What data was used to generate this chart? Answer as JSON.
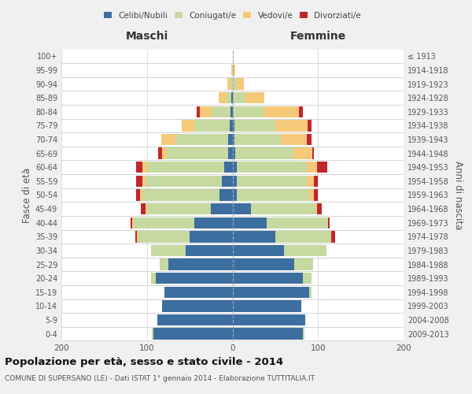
{
  "age_groups": [
    "100+",
    "95-99",
    "90-94",
    "85-89",
    "80-84",
    "75-79",
    "70-74",
    "65-69",
    "60-64",
    "55-59",
    "50-54",
    "45-49",
    "40-44",
    "35-39",
    "30-34",
    "25-29",
    "20-24",
    "15-19",
    "10-14",
    "5-9",
    "0-4"
  ],
  "birth_years": [
    "≤ 1913",
    "1914-1918",
    "1919-1923",
    "1924-1928",
    "1929-1933",
    "1934-1938",
    "1939-1943",
    "1944-1948",
    "1949-1953",
    "1954-1958",
    "1959-1963",
    "1964-1968",
    "1969-1973",
    "1974-1978",
    "1979-1983",
    "1984-1988",
    "1989-1993",
    "1994-1998",
    "1999-2003",
    "2004-2008",
    "2009-2013"
  ],
  "colors": {
    "celibi": "#3d6ea0",
    "coniugati": "#c5d9a0",
    "vedovi": "#f5c97a",
    "divorziati": "#c0272d"
  },
  "males": {
    "celibi": [
      0,
      0,
      0,
      1,
      2,
      3,
      5,
      5,
      10,
      12,
      15,
      25,
      45,
      50,
      55,
      75,
      90,
      80,
      82,
      88,
      92
    ],
    "coniugati": [
      0,
      0,
      2,
      6,
      22,
      42,
      62,
      72,
      90,
      90,
      90,
      75,
      70,
      60,
      40,
      10,
      5,
      0,
      0,
      0,
      2
    ],
    "vedovi": [
      0,
      1,
      4,
      9,
      14,
      14,
      16,
      5,
      5,
      3,
      3,
      2,
      2,
      2,
      0,
      0,
      0,
      0,
      0,
      0,
      0
    ],
    "divorziati": [
      0,
      0,
      0,
      0,
      4,
      0,
      0,
      5,
      8,
      8,
      5,
      5,
      2,
      2,
      0,
      0,
      0,
      0,
      0,
      0,
      0
    ]
  },
  "females": {
    "celibi": [
      0,
      0,
      0,
      0,
      0,
      2,
      2,
      3,
      5,
      5,
      5,
      22,
      40,
      50,
      60,
      72,
      82,
      90,
      80,
      85,
      82
    ],
    "coniugati": [
      0,
      1,
      5,
      15,
      36,
      48,
      55,
      68,
      82,
      82,
      85,
      75,
      72,
      65,
      50,
      22,
      10,
      2,
      0,
      0,
      2
    ],
    "vedovi": [
      1,
      2,
      8,
      22,
      42,
      38,
      30,
      22,
      12,
      8,
      5,
      2,
      0,
      0,
      0,
      0,
      0,
      0,
      0,
      0,
      0
    ],
    "divorziati": [
      0,
      0,
      0,
      0,
      4,
      4,
      5,
      2,
      12,
      5,
      5,
      5,
      2,
      5,
      0,
      0,
      0,
      0,
      0,
      0,
      0
    ]
  },
  "xlim": 200,
  "title": "Popolazione per età, sesso e stato civile - 2014",
  "subtitle": "COMUNE DI SUPERSANO (LE) - Dati ISTAT 1° gennaio 2014 - Elaborazione TUTTITALIA.IT",
  "ylabel_left": "Fasce di età",
  "ylabel_right": "Anni di nascita",
  "label_maschi": "Maschi",
  "label_femmine": "Femmine",
  "legend_labels": [
    "Celibi/Nubili",
    "Coniugati/e",
    "Vedovi/e",
    "Divorziati/e"
  ],
  "bg_color": "#f0f0f0",
  "plot_bg_color": "#ffffff",
  "grid_color": "#d0d0d0"
}
